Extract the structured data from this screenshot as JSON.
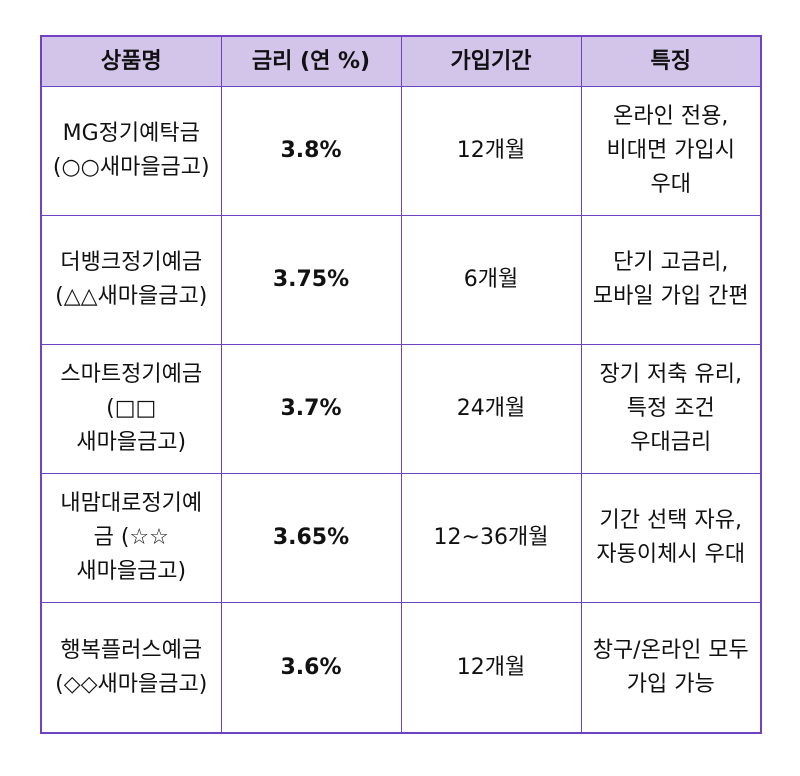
{
  "table": {
    "headers": [
      "상품명",
      "금리 (연 %)",
      "가입기간",
      "특징"
    ],
    "rows": [
      {
        "product": "MG정기예탁금 (○○새마을금고)",
        "rate": "3.8%",
        "term": "12개월",
        "feature": "온라인 전용, 비대면 가입시 우대"
      },
      {
        "product": "더뱅크정기예금 (△△새마을금고)",
        "rate": "3.75%",
        "term": "6개월",
        "feature": "단기 고금리, 모바일 가입 간편"
      },
      {
        "product": "스마트정기예금 (□□새마을금고)",
        "rate": "3.7%",
        "term": "24개월",
        "feature": "장기 저축 유리, 특정 조건 우대금리"
      },
      {
        "product": "내맘대로정기예금 (☆☆새마을금고)",
        "rate": "3.65%",
        "term": "12~36개월",
        "feature": "기간 선택 자유, 자동이체시 우대"
      },
      {
        "product": "행복플러스예금 (◇◇새마을금고)",
        "rate": "3.6%",
        "term": "12개월",
        "feature": "창구/온라인 모두 가입 가능"
      }
    ]
  },
  "colors": {
    "header_bg": "#d3c4ea",
    "border": "#6f42c1"
  }
}
